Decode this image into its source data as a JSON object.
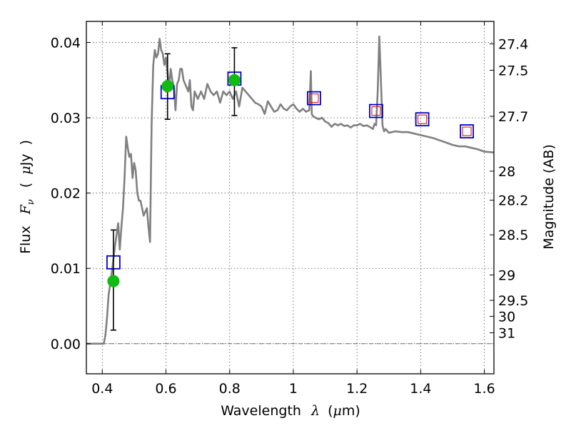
{
  "chart_data": {
    "type": "scatter",
    "xlabel": "Wavelength",
    "xlabel_symbol": "λ",
    "xlabel_unit_open": "(",
    "xlabel_unit_mu": "μ",
    "xlabel_unit_rest": "m)",
    "ylabel": "Flux",
    "ylabel_symbol_main": "F",
    "ylabel_symbol_sub": "ν",
    "ylabel_unit_open": "(",
    "ylabel_unit_mu": "μ",
    "ylabel_unit_rest": "Jy",
    "ylabel_unit_close": ")",
    "y2label": "Magnitude (AB)",
    "xlim": [
      0.35,
      1.63
    ],
    "ylim": [
      -0.004,
      0.0428
    ],
    "grid": true,
    "grid_style": "dotted",
    "x_ticks": [
      0.4,
      0.6,
      0.8,
      1.0,
      1.2,
      1.4,
      1.6
    ],
    "x_tick_labels": [
      "0.4",
      "0.6",
      "0.8",
      "1",
      "1.2",
      "1.4",
      "1.6"
    ],
    "y_ticks": [
      0.0,
      0.01,
      0.02,
      0.03,
      0.04
    ],
    "y_tick_labels": [
      "0.00",
      "0.01",
      "0.02",
      "0.03",
      "0.04"
    ],
    "y2_tick_labels": [
      "27.4",
      "27.5",
      "27.7",
      "28",
      "28.2",
      "28.5",
      "29",
      "29.5",
      "30",
      "31"
    ],
    "zero_line": true,
    "series": [
      {
        "role": "model-spectrum-line",
        "color": "#808080",
        "x": [
          0.35,
          0.39,
          0.405,
          0.41,
          0.415,
          0.42,
          0.43,
          0.44,
          0.45,
          0.455,
          0.46,
          0.465,
          0.47,
          0.475,
          0.48,
          0.485,
          0.49,
          0.495,
          0.5,
          0.505,
          0.51,
          0.515,
          0.52,
          0.525,
          0.53,
          0.535,
          0.54,
          0.545,
          0.55,
          0.555,
          0.56,
          0.565,
          0.57,
          0.575,
          0.58,
          0.585,
          0.59,
          0.595,
          0.6,
          0.605,
          0.61,
          0.615,
          0.62,
          0.625,
          0.63,
          0.635,
          0.64,
          0.645,
          0.65,
          0.655,
          0.66,
          0.665,
          0.67,
          0.675,
          0.68,
          0.685,
          0.69,
          0.7,
          0.71,
          0.72,
          0.73,
          0.74,
          0.75,
          0.76,
          0.77,
          0.78,
          0.79,
          0.8,
          0.81,
          0.82,
          0.83,
          0.84,
          0.85,
          0.86,
          0.87,
          0.88,
          0.89,
          0.9,
          0.91,
          0.92,
          0.93,
          0.94,
          0.95,
          0.96,
          0.97,
          0.98,
          0.99,
          1.0,
          1.01,
          1.02,
          1.03,
          1.04,
          1.05,
          1.055,
          1.058,
          1.062,
          1.07,
          1.08,
          1.09,
          1.1,
          1.11,
          1.12,
          1.13,
          1.14,
          1.15,
          1.16,
          1.17,
          1.18,
          1.19,
          1.2,
          1.21,
          1.22,
          1.23,
          1.24,
          1.25,
          1.255,
          1.26,
          1.265,
          1.27,
          1.275,
          1.28,
          1.285,
          1.29,
          1.3,
          1.32,
          1.34,
          1.36,
          1.38,
          1.4,
          1.42,
          1.44,
          1.46,
          1.48,
          1.5,
          1.52,
          1.54,
          1.56,
          1.58,
          1.6,
          1.63
        ],
        "y": [
          0.0,
          0.0,
          0.0,
          0.0012,
          0.0035,
          0.0065,
          0.0095,
          0.013,
          0.016,
          0.0125,
          0.0155,
          0.018,
          0.022,
          0.0275,
          0.026,
          0.0248,
          0.0252,
          0.022,
          0.024,
          0.023,
          0.02,
          0.019,
          0.019,
          0.018,
          0.017,
          0.0175,
          0.018,
          0.0155,
          0.0135,
          0.029,
          0.037,
          0.039,
          0.038,
          0.0385,
          0.0405,
          0.039,
          0.0385,
          0.037,
          0.038,
          0.036,
          0.034,
          0.0365,
          0.035,
          0.034,
          0.031,
          0.0345,
          0.035,
          0.0365,
          0.0365,
          0.035,
          0.0345,
          0.034,
          0.0335,
          0.035,
          0.0315,
          0.031,
          0.0335,
          0.0325,
          0.0335,
          0.0325,
          0.0345,
          0.0335,
          0.033,
          0.0335,
          0.032,
          0.0335,
          0.033,
          0.0335,
          0.0325,
          0.0335,
          0.0315,
          0.034,
          0.0335,
          0.033,
          0.0325,
          0.032,
          0.0318,
          0.0315,
          0.0305,
          0.0322,
          0.0315,
          0.0308,
          0.031,
          0.0318,
          0.0312,
          0.031,
          0.0315,
          0.0318,
          0.0312,
          0.0308,
          0.0312,
          0.0308,
          0.031,
          0.0362,
          0.0305,
          0.0302,
          0.03,
          0.0298,
          0.03,
          0.0295,
          0.0293,
          0.0288,
          0.0292,
          0.029,
          0.0292,
          0.0289,
          0.029,
          0.0287,
          0.029,
          0.029,
          0.0292,
          0.0289,
          0.029,
          0.0288,
          0.0285,
          0.0292,
          0.029,
          0.0335,
          0.0408,
          0.0352,
          0.029,
          0.0282,
          0.0285,
          0.028,
          0.0282,
          0.0281,
          0.0281,
          0.0279,
          0.0277,
          0.0275,
          0.0273,
          0.027,
          0.0267,
          0.0264,
          0.0262,
          0.0262,
          0.026,
          0.0258,
          0.0255,
          0.0254
        ]
      },
      {
        "role": "model-photometry",
        "marker": "open-square",
        "color": "#0000cc",
        "x": [
          0.435,
          0.605,
          0.815,
          1.065,
          1.26,
          1.405,
          1.545
        ],
        "y": [
          0.0108,
          0.0334,
          0.0352,
          0.0326,
          0.0309,
          0.0298,
          0.0282
        ]
      },
      {
        "role": "observed-photometry",
        "marker": "circle",
        "color": "#11bb11",
        "x": [
          0.435,
          0.605,
          0.815
        ],
        "y": [
          0.0083,
          0.0342,
          0.035
        ],
        "yerr_low": [
          0.0018,
          0.0298,
          0.0303
        ],
        "yerr_high": [
          0.0151,
          0.0385,
          0.0393
        ]
      },
      {
        "role": "model-photometry-small",
        "marker": "open-square",
        "color": "#dd0000",
        "x": [
          1.065,
          1.26,
          1.405,
          1.545
        ],
        "y": [
          0.0326,
          0.0309,
          0.0298,
          0.0282
        ]
      }
    ]
  }
}
